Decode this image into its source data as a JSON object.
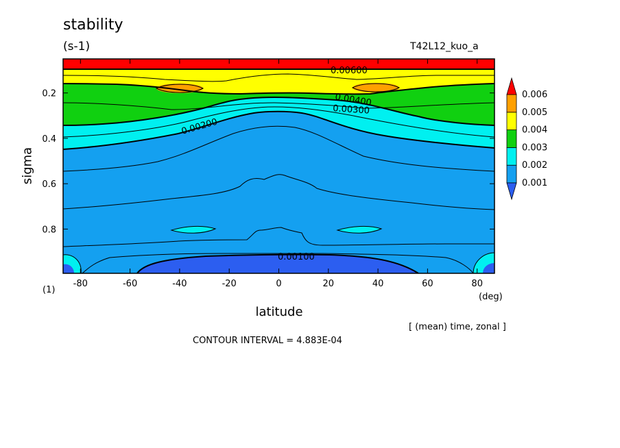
{
  "header": {
    "title": "stability",
    "units": "(s-1)",
    "run": "T42L12_kuo_a"
  },
  "axes": {
    "xlabel": "latitude",
    "xunit": "(deg)",
    "ylabel": "sigma",
    "yunit": "(1)"
  },
  "footer": {
    "averaging": "[ (mean) time, zonal ]",
    "interval": "CONTOUR INTERVAL = 4.883E-04"
  },
  "chart_data": {
    "type": "heatmap",
    "title": "stability",
    "units": "(s-1)",
    "xlabel": "latitude",
    "ylabel": "sigma",
    "xlim": [
      -87,
      87
    ],
    "ylim": [
      0.995,
      0.05
    ],
    "xticks": [
      "-80",
      "-60",
      "-40",
      "-20",
      "0",
      "20",
      "40",
      "60",
      "80"
    ],
    "yticks": [
      "0.2",
      "0.4",
      "0.6",
      "0.8"
    ],
    "colorbar": {
      "levels": [
        "0.001",
        "0.002",
        "0.003",
        "0.004",
        "0.005",
        "0.006"
      ],
      "colors": [
        "#2c5ef0",
        "#14a0f0",
        "#00f0f0",
        "#10d010",
        "#ffff00",
        "#ffa000",
        "#ff0000"
      ],
      "extend": "both"
    },
    "contour_labels": [
      "0.00600",
      "0.00400",
      "0.00300",
      "0.00200",
      "0.00100"
    ],
    "contour_interval": 0.0004883,
    "grid": false,
    "legend_position": "right"
  }
}
